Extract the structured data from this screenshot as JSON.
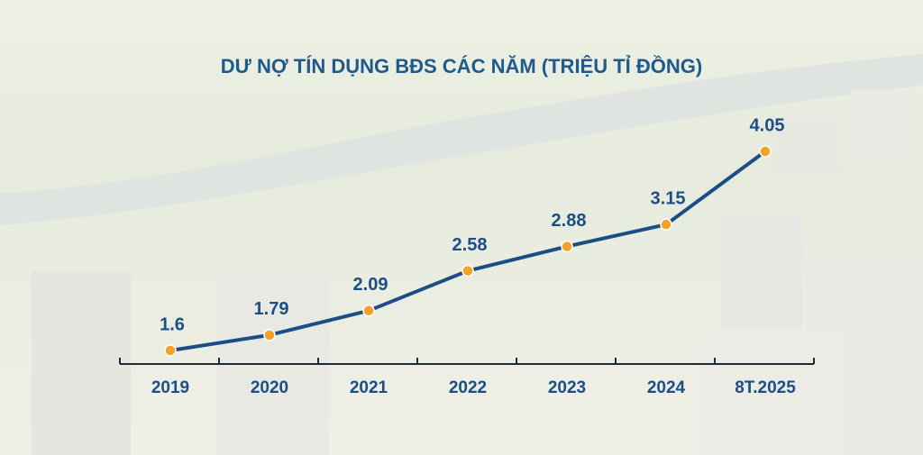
{
  "chart_data": {
    "type": "line",
    "title": "DƯ NỢ TÍN DỤNG BĐS CÁC NĂM (TRIỆU TỈ ĐỒNG)",
    "categories": [
      "2019",
      "2020",
      "2021",
      "2022",
      "2023",
      "2024",
      "8T.2025"
    ],
    "values": [
      1.6,
      1.79,
      2.09,
      2.58,
      2.88,
      3.15,
      4.05
    ],
    "color": "#1c4e86",
    "marker_color": "#f4a12a"
  }
}
